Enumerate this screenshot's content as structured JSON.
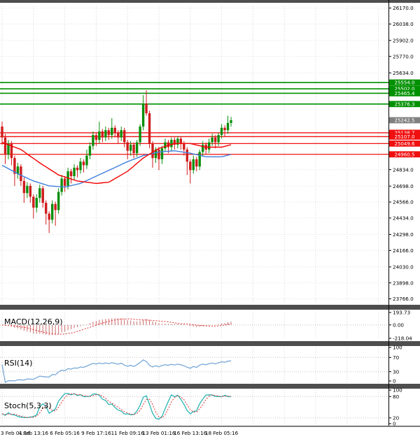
{
  "meta": {
    "bg_color": "#ffffff",
    "divider_color": "#4e4e4e",
    "axis_color": "#000000",
    "grid_color": "#d6d6d6",
    "text_color": "#000000"
  },
  "chart_data": {
    "type": "candlestick",
    "x_labels": [
      "3 Feb 01:16",
      "4 Feb 13:16",
      "6 Feb 05:16",
      "9 Feb 17:16",
      "11 Feb 09:16",
      "13 Feb 01:16",
      "16 Feb 13:16",
      "18 Feb 05:16"
    ],
    "bars_per_x_label": 10,
    "y_ticks": [
      26170.0,
      26038.0,
      25902.0,
      25770.0,
      25634.0,
      24834.0,
      24698.0,
      24566.0,
      24434.0,
      24298.0,
      24166.0,
      24030.0,
      23898.0,
      23766.0
    ],
    "y_range": [
      23740,
      26190
    ],
    "current_price": 25242.5,
    "resistance_levels": [
      25554.0,
      25502.0,
      25465.4,
      25376.3
    ],
    "support_levels": [
      25138.7,
      25107.0,
      25049.6,
      24960.5
    ],
    "candles": [
      [
        25190,
        25230,
        25040,
        25100
      ],
      [
        25100,
        25130,
        24880,
        24960
      ],
      [
        24960,
        25080,
        24920,
        25050
      ],
      [
        25050,
        25070,
        24870,
        24930
      ],
      [
        24930,
        24950,
        24700,
        24800
      ],
      [
        24800,
        24890,
        24760,
        24860
      ],
      [
        24860,
        24880,
        24700,
        24740
      ],
      [
        24740,
        24770,
        24560,
        24640
      ],
      [
        24640,
        24730,
        24600,
        24700
      ],
      [
        24700,
        24720,
        24560,
        24610
      ],
      [
        24610,
        24630,
        24430,
        24520
      ],
      [
        24520,
        24630,
        24480,
        24600
      ],
      [
        24600,
        24710,
        24560,
        24680
      ],
      [
        24680,
        24700,
        24520,
        24560
      ],
      [
        24560,
        24580,
        24380,
        24470
      ],
      [
        24470,
        24490,
        24310,
        24420
      ],
      [
        24420,
        24580,
        24390,
        24550
      ],
      [
        24550,
        24570,
        24370,
        24500
      ],
      [
        24500,
        24680,
        24470,
        24650
      ],
      [
        24650,
        24790,
        24620,
        24760
      ],
      [
        24760,
        24780,
        24650,
        24700
      ],
      [
        24700,
        24850,
        24670,
        24820
      ],
      [
        24820,
        24840,
        24720,
        24780
      ],
      [
        24780,
        24880,
        24750,
        24850
      ],
      [
        24850,
        24870,
        24770,
        24830
      ],
      [
        24830,
        24930,
        24800,
        24900
      ],
      [
        24900,
        24920,
        24810,
        24870
      ],
      [
        24870,
        25000,
        24840,
        24950
      ],
      [
        24950,
        25060,
        24920,
        25030
      ],
      [
        25030,
        25150,
        25000,
        25120
      ],
      [
        25120,
        25140,
        25030,
        25080
      ],
      [
        25080,
        25230,
        25050,
        25150
      ],
      [
        25150,
        25170,
        25060,
        25100
      ],
      [
        25100,
        25190,
        25070,
        25160
      ],
      [
        25160,
        25180,
        25080,
        25120
      ],
      [
        25120,
        25260,
        25090,
        25180
      ],
      [
        25180,
        25200,
        25100,
        25140
      ],
      [
        25140,
        25160,
        25050,
        25100
      ],
      [
        25100,
        25190,
        25070,
        25160
      ],
      [
        25160,
        25180,
        25020,
        25060
      ],
      [
        25060,
        25080,
        24920,
        24990
      ],
      [
        24990,
        25070,
        24950,
        25040
      ],
      [
        25040,
        25060,
        24930,
        24970
      ],
      [
        24970,
        25080,
        24940,
        25060
      ],
      [
        25060,
        25210,
        25030,
        25190
      ],
      [
        25190,
        25450,
        25160,
        25380
      ],
      [
        25380,
        25490,
        25280,
        25300
      ],
      [
        25300,
        25320,
        25010,
        25050
      ],
      [
        25050,
        25070,
        24850,
        24930
      ],
      [
        24930,
        25020,
        24890,
        25000
      ],
      [
        25000,
        25020,
        24830,
        24920
      ],
      [
        24920,
        25030,
        24880,
        25010
      ],
      [
        25010,
        25090,
        24980,
        25060
      ],
      [
        25060,
        25080,
        24970,
        25020
      ],
      [
        25020,
        25100,
        24990,
        25080
      ],
      [
        25080,
        25100,
        25000,
        25040
      ],
      [
        25040,
        25110,
        25010,
        25090
      ],
      [
        25090,
        25110,
        25000,
        25050
      ],
      [
        25050,
        25070,
        24950,
        25000
      ],
      [
        25000,
        25020,
        24790,
        24900
      ],
      [
        24900,
        24920,
        24720,
        24830
      ],
      [
        24830,
        24950,
        24800,
        24920
      ],
      [
        24920,
        24940,
        24820,
        24860
      ],
      [
        24860,
        25000,
        24830,
        24980
      ],
      [
        24980,
        25070,
        24950,
        25040
      ],
      [
        25040,
        25060,
        24960,
        25000
      ],
      [
        25000,
        25090,
        24970,
        25060
      ],
      [
        25060,
        25130,
        25030,
        25100
      ],
      [
        25100,
        25120,
        25010,
        25060
      ],
      [
        25060,
        25140,
        25030,
        25120
      ],
      [
        25120,
        25210,
        25090,
        25180
      ],
      [
        25180,
        25200,
        25110,
        25160
      ],
      [
        25160,
        25280,
        25130,
        25220
      ],
      [
        25220,
        25270,
        25190,
        25242.5
      ]
    ],
    "ma_fast_red_points": [
      [
        0,
        25060
      ],
      [
        6,
        25000
      ],
      [
        12,
        24890
      ],
      [
        18,
        24790
      ],
      [
        24,
        24740
      ],
      [
        30,
        24720
      ],
      [
        34,
        24730
      ],
      [
        40,
        24820
      ],
      [
        45,
        24930
      ],
      [
        50,
        25010
      ],
      [
        55,
        25050
      ],
      [
        60,
        25050
      ],
      [
        65,
        25020
      ],
      [
        70,
        25020
      ],
      [
        73,
        25040
      ]
    ],
    "ma_slow_blue_points": [
      [
        0,
        24870
      ],
      [
        5,
        24800
      ],
      [
        10,
        24740
      ],
      [
        15,
        24700
      ],
      [
        20,
        24690
      ],
      [
        25,
        24720
      ],
      [
        30,
        24780
      ],
      [
        35,
        24840
      ],
      [
        40,
        24900
      ],
      [
        45,
        24950
      ],
      [
        50,
        24980
      ],
      [
        55,
        24990
      ],
      [
        60,
        24970
      ],
      [
        65,
        24940
      ],
      [
        70,
        24940
      ],
      [
        73,
        24960
      ]
    ],
    "indicators": {
      "macd": {
        "label": "MACD(12,26,9)",
        "params": [
          12,
          26,
          9
        ],
        "axis_labels": [
          "193.73",
          "0.00",
          "-218.04"
        ],
        "y_max": 193.73,
        "y_min": -218.04
      },
      "rsi": {
        "label": "RSI(14)",
        "period": 14,
        "axis_labels": [
          100,
          70,
          30,
          0
        ],
        "guide_levels": [
          70,
          30
        ]
      },
      "stoch": {
        "label": "Stoch(5,3,3)",
        "params": [
          5,
          3,
          3
        ],
        "axis_labels": [
          100,
          80,
          20,
          0
        ],
        "guide_levels": [
          80,
          20
        ]
      }
    },
    "colors": {
      "bull": "#0a8f0a",
      "bear": "#cf1d1d",
      "ma_red": "#f40000",
      "ma_blue": "#3f7fde",
      "resistance": "#009000",
      "support": "#f01010",
      "current_badge": "#808080",
      "macd_hist": "#c96a6a",
      "macd_signal": "#e23030",
      "rsi_line": "#78a8d8",
      "stoch_k": "#29b6b6",
      "stoch_d": "#e23030"
    }
  }
}
